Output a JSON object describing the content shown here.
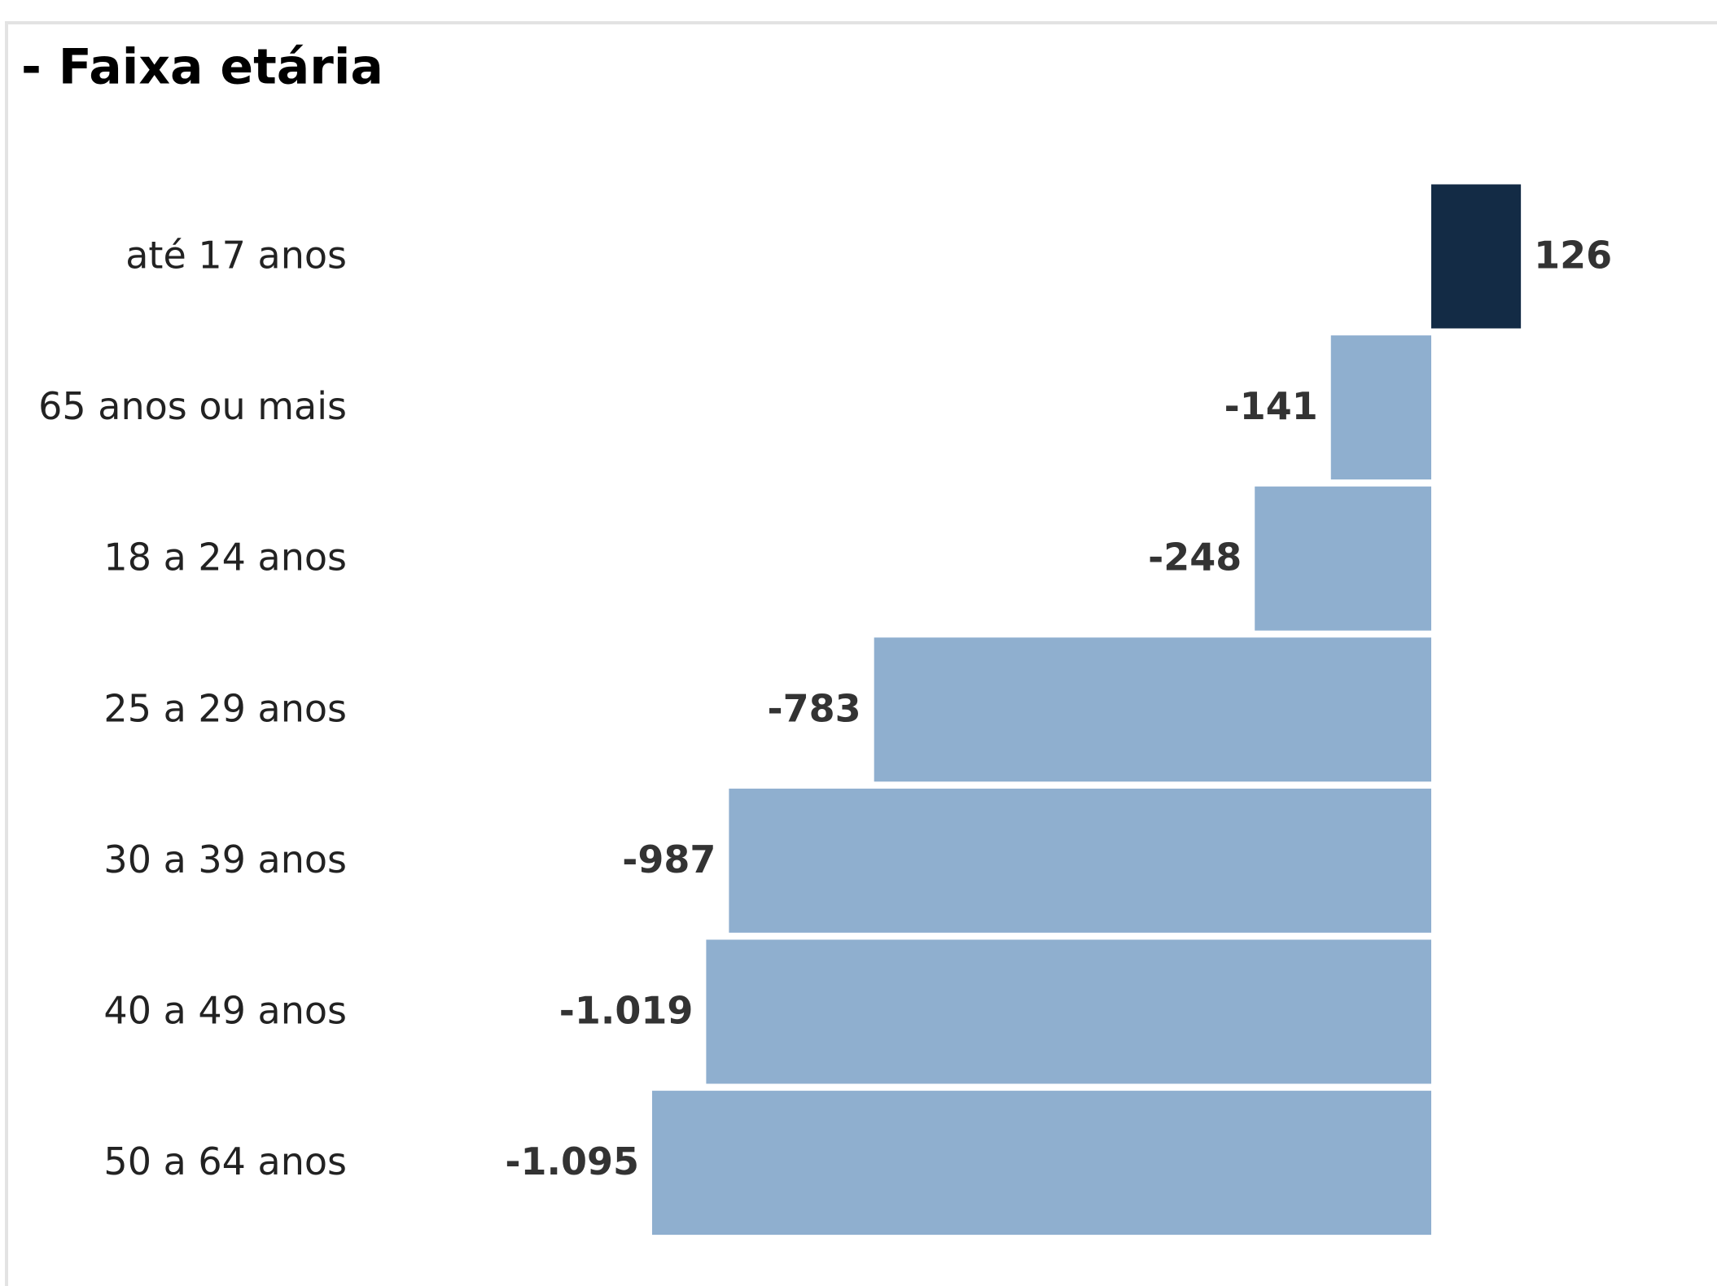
{
  "chart_data": {
    "type": "bar",
    "orientation": "horizontal",
    "title": "- Faixa etária",
    "categories": [
      "até 17 anos",
      "65 anos ou mais",
      "18 a 24 anos",
      "25 a 29 anos",
      "30 a 39 anos",
      "40 a 49 anos",
      "50 a 64 anos"
    ],
    "values": [
      126,
      -141,
      -248,
      -783,
      -987,
      -1019,
      -1095
    ],
    "value_labels": [
      "126",
      "-141",
      "-248",
      "-783",
      "-987",
      "-1.019",
      "-1.095"
    ],
    "positive_color": "#132b45",
    "negative_color": "#8fafcf",
    "grid": false
  }
}
